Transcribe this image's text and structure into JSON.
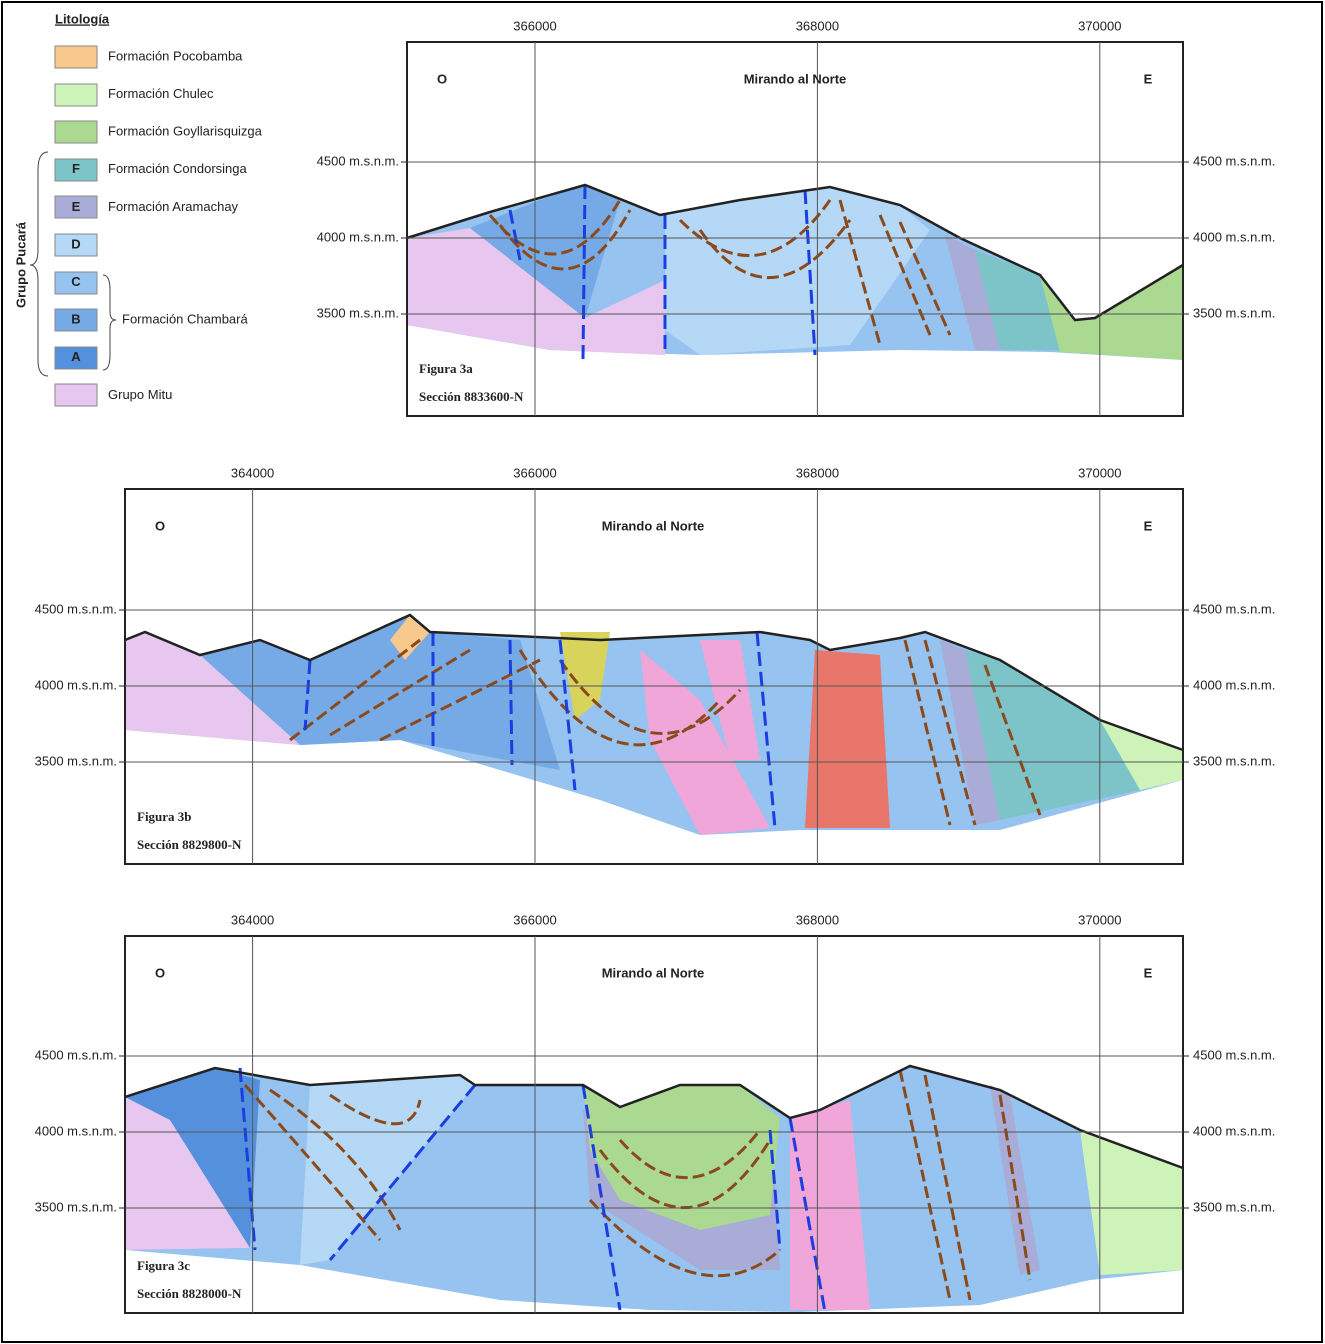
{
  "legend": {
    "title": "Litología",
    "items": [
      {
        "text": "Formación Pocobamba"
      },
      {
        "text": "Formación Chulec"
      },
      {
        "text": "Formación Goyllarisquizga"
      },
      {
        "letter": "F",
        "text": "Formación Condorsinga"
      },
      {
        "letter": "E",
        "text": "Formación Aramachay"
      },
      {
        "letter": "D"
      },
      {
        "letter": "C"
      },
      {
        "letter": "B"
      },
      {
        "letter": "A"
      },
      {
        "text": "Grupo Mitu"
      }
    ],
    "group": "Grupo Pucará",
    "subgroup": "Formación Chambará"
  },
  "panels": [
    {
      "figure": "Figura 3a",
      "section": "Sección 8833600-N",
      "view": "Mirando al Norte",
      "west": "O",
      "east": "E",
      "eastings": [
        366000,
        368000,
        370000
      ],
      "elevations": [
        {
          "value": 4500,
          "label": "4500 m.s.n.m."
        },
        {
          "value": 4000,
          "label": "4000 m.s.n.m."
        },
        {
          "value": 3500,
          "label": "3500 m.s.n.m."
        }
      ]
    },
    {
      "figure": "Figura 3b",
      "section": "Sección 8829800-N",
      "view": "Mirando al Norte",
      "west": "O",
      "east": "E",
      "eastings": [
        364000,
        366000,
        368000,
        370000
      ],
      "elevations": [
        {
          "value": 4500,
          "label": "4500 m.s.n.m."
        },
        {
          "value": 4000,
          "label": "4000 m.s.n.m."
        },
        {
          "value": 3500,
          "label": "3500 m.s.n.m."
        }
      ]
    },
    {
      "figure": "Figura 3c",
      "section": "Sección 8828000-N",
      "view": "Mirando al Norte",
      "west": "O",
      "east": "E",
      "eastings": [
        364000,
        366000,
        368000,
        370000
      ],
      "elevations": [
        {
          "value": 4500,
          "label": "4500 m.s.n.m."
        },
        {
          "value": 4000,
          "label": "4000 m.s.n.m."
        },
        {
          "value": 3500,
          "label": "3500 m.s.n.m."
        }
      ]
    }
  ]
}
